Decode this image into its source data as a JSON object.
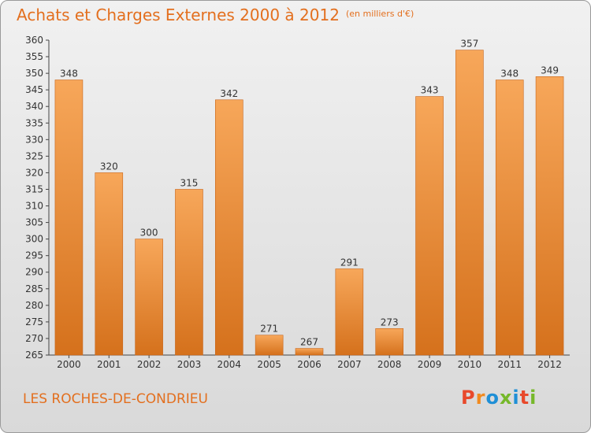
{
  "header": {
    "title": "Achats et Charges Externes 2000 à 2012",
    "unit": "(en milliers d'€)"
  },
  "footer": {
    "town": "LES ROCHES-DE-CONDRIEU",
    "logo": {
      "letters": [
        "P",
        "r",
        "o",
        "x",
        "i",
        "t",
        "i"
      ],
      "colors": [
        "#e8492b",
        "#f18a1f",
        "#1f8fd6",
        "#76b82a",
        "#1f8fd6",
        "#e8492b",
        "#76b82a"
      ]
    }
  },
  "chart_data": {
    "type": "bar",
    "title": "Achats et Charges Externes 2000 à 2012",
    "subtitle": "(en milliers d'€)",
    "categories": [
      "2000",
      "2001",
      "2002",
      "2003",
      "2004",
      "2005",
      "2006",
      "2007",
      "2008",
      "2009",
      "2010",
      "2011",
      "2012"
    ],
    "values": [
      348,
      320,
      300,
      315,
      342,
      271,
      267,
      291,
      273,
      343,
      357,
      348,
      349
    ],
    "ylim": [
      265,
      360
    ],
    "ytick_step": 5,
    "grid": false,
    "colors": {
      "bar_top": "#f7a75a",
      "bar_bottom": "#d5711c",
      "bar_edge": "#c8651a",
      "text": "#333333",
      "accent": "#e36f1e"
    }
  }
}
